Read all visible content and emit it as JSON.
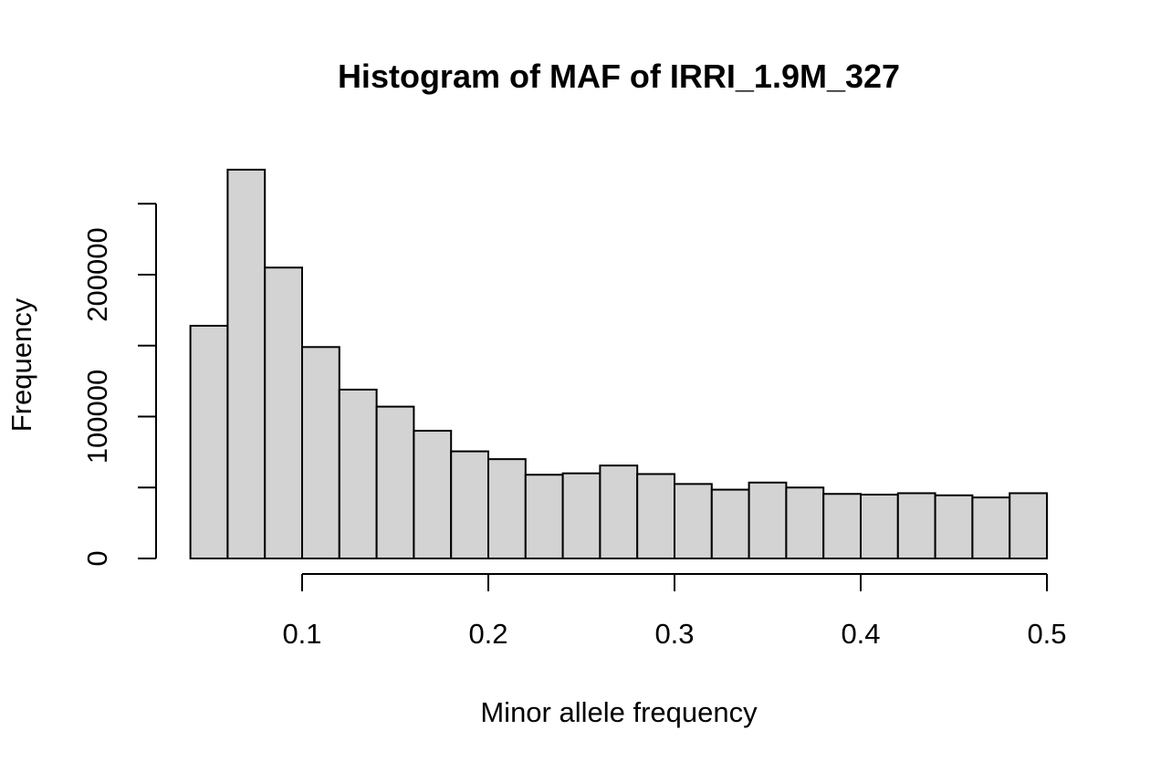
{
  "chart_data": {
    "type": "bar",
    "title": "Histogram of MAF of IRRI_1.9M_327",
    "xlabel": "Minor allele frequency",
    "ylabel": "Frequency",
    "bin_edges": [
      0.04,
      0.06,
      0.08,
      0.1,
      0.12,
      0.14,
      0.16,
      0.18,
      0.2,
      0.22,
      0.24,
      0.26,
      0.28,
      0.3,
      0.32,
      0.34,
      0.36,
      0.38,
      0.4,
      0.42,
      0.44,
      0.46,
      0.48,
      0.5
    ],
    "values": [
      164000,
      274000,
      205000,
      149000,
      119000,
      107000,
      90000,
      75500,
      70000,
      59000,
      60000,
      65500,
      59500,
      52500,
      48500,
      53500,
      50000,
      45500,
      45000,
      46000,
      44500,
      43000,
      46000
    ],
    "xlim": [
      0.1,
      0.5
    ],
    "ylim": [
      0,
      250000
    ],
    "x_ticks": [
      "0.1",
      "0.2",
      "0.3",
      "0.4",
      "0.5"
    ],
    "y_ticks": [
      "0",
      "100000",
      "200000"
    ],
    "colors": {
      "bar_fill": "#d3d3d3",
      "bar_stroke": "#000000"
    }
  }
}
